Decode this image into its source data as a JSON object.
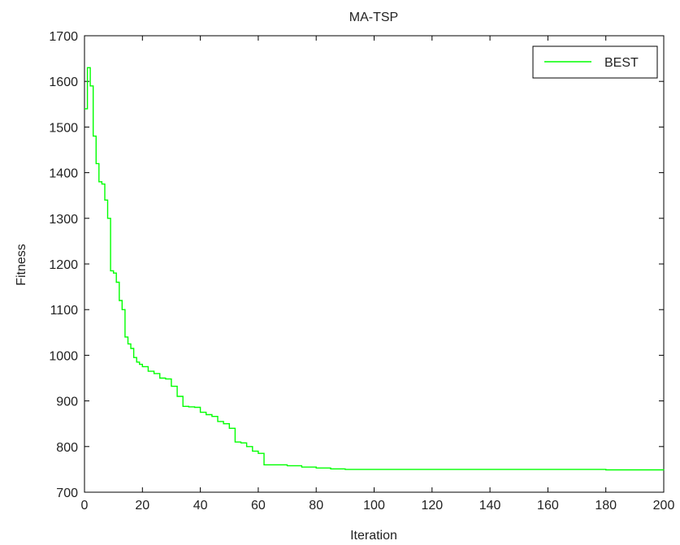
{
  "chart_data": {
    "type": "line",
    "title": "MA-TSP",
    "xlabel": "Iteration",
    "ylabel": "Fitness",
    "xlim": [
      0,
      200
    ],
    "ylim": [
      700,
      1700
    ],
    "xticks": [
      0,
      20,
      40,
      60,
      80,
      100,
      120,
      140,
      160,
      180,
      200
    ],
    "yticks": [
      700,
      800,
      900,
      1000,
      1100,
      1200,
      1300,
      1400,
      1500,
      1600,
      1700
    ],
    "xtick_labels": [
      "0",
      "20",
      "40",
      "60",
      "80",
      "100",
      "120",
      "140",
      "160",
      "180",
      "200"
    ],
    "ytick_labels": [
      "700",
      "800",
      "900",
      "1000",
      "1100",
      "1200",
      "1300",
      "1400",
      "1500",
      "1600",
      "1700"
    ],
    "grid": false,
    "legend": {
      "position": "top-right"
    },
    "series": [
      {
        "name": "BEST",
        "color": "#00ff00",
        "x": [
          0,
          1,
          2,
          3,
          4,
          5,
          6,
          7,
          8,
          9,
          10,
          11,
          12,
          13,
          14,
          15,
          16,
          17,
          18,
          19,
          20,
          22,
          24,
          26,
          28,
          30,
          32,
          34,
          36,
          38,
          40,
          42,
          44,
          46,
          48,
          50,
          52,
          54,
          56,
          58,
          60,
          62,
          66,
          70,
          75,
          80,
          85,
          90,
          100,
          120,
          140,
          160,
          180,
          200
        ],
        "y": [
          1540,
          1630,
          1590,
          1480,
          1420,
          1380,
          1375,
          1340,
          1300,
          1185,
          1180,
          1160,
          1120,
          1100,
          1040,
          1025,
          1015,
          995,
          985,
          980,
          975,
          965,
          960,
          950,
          948,
          932,
          910,
          888,
          887,
          886,
          875,
          870,
          866,
          855,
          850,
          840,
          810,
          808,
          800,
          790,
          785,
          760,
          760,
          758,
          755,
          753,
          751,
          750,
          750,
          750,
          750,
          750,
          749,
          748
        ]
      }
    ]
  }
}
